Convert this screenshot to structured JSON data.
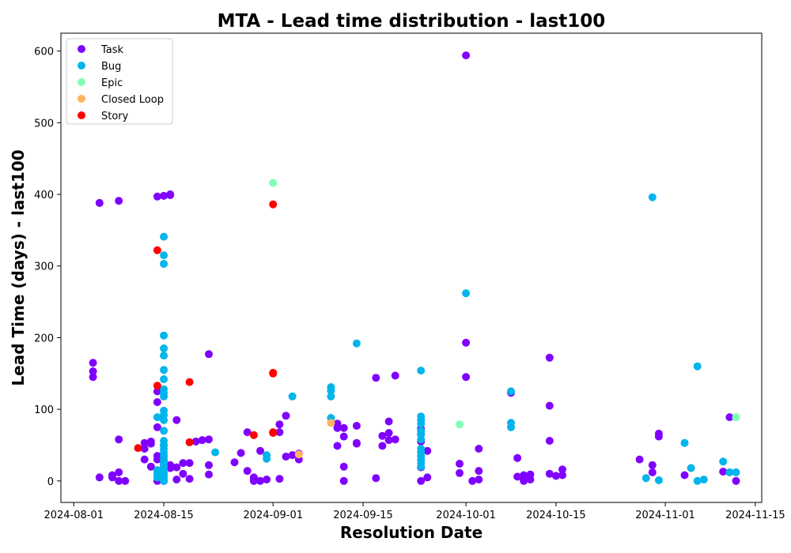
{
  "chart_data": {
    "type": "scatter",
    "title": "MTA - Lead time distribution - last100",
    "xlabel": "Resolution Date",
    "ylabel": "Lead Time (days) - last100",
    "xlim": [
      "2024-07-30",
      "2024-11-16"
    ],
    "ylim": [
      -30,
      625
    ],
    "x_ticks": [
      "2024-08-01",
      "2024-08-15",
      "2024-09-01",
      "2024-09-15",
      "2024-10-01",
      "2024-10-15",
      "2024-11-01",
      "2024-11-15"
    ],
    "y_ticks": [
      0,
      100,
      200,
      300,
      400,
      500,
      600
    ],
    "grid": false,
    "legend_position": "upper left",
    "series": [
      {
        "name": "Task",
        "color": "#8000ff",
        "points": [
          [
            "2024-08-04",
            165
          ],
          [
            "2024-08-04",
            153
          ],
          [
            "2024-08-04",
            145
          ],
          [
            "2024-08-05",
            388
          ],
          [
            "2024-08-05",
            5
          ],
          [
            "2024-08-07",
            5
          ],
          [
            "2024-08-07",
            8
          ],
          [
            "2024-08-08",
            0
          ],
          [
            "2024-08-08",
            12
          ],
          [
            "2024-08-08",
            58
          ],
          [
            "2024-08-08",
            391
          ],
          [
            "2024-08-09",
            0
          ],
          [
            "2024-08-12",
            53
          ],
          [
            "2024-08-12",
            30
          ],
          [
            "2024-08-12",
            45
          ],
          [
            "2024-08-13",
            20
          ],
          [
            "2024-08-13",
            55
          ],
          [
            "2024-08-13",
            52
          ],
          [
            "2024-08-14",
            75
          ],
          [
            "2024-08-14",
            35
          ],
          [
            "2024-08-14",
            30
          ],
          [
            "2024-08-14",
            0
          ],
          [
            "2024-08-14",
            15
          ],
          [
            "2024-08-14",
            397
          ],
          [
            "2024-08-14",
            110
          ],
          [
            "2024-08-14",
            125
          ],
          [
            "2024-08-15",
            398
          ],
          [
            "2024-08-15",
            35
          ],
          [
            "2024-08-15",
            50
          ],
          [
            "2024-08-15",
            22
          ],
          [
            "2024-08-15",
            5
          ],
          [
            "2024-08-15",
            0
          ],
          [
            "2024-08-15",
            10
          ],
          [
            "2024-08-15",
            28
          ],
          [
            "2024-08-16",
            399
          ],
          [
            "2024-08-16",
            400
          ],
          [
            "2024-08-16",
            22
          ],
          [
            "2024-08-16",
            18
          ],
          [
            "2024-08-17",
            2
          ],
          [
            "2024-08-17",
            85
          ],
          [
            "2024-08-17",
            19
          ],
          [
            "2024-08-18",
            10
          ],
          [
            "2024-08-18",
            25
          ],
          [
            "2024-08-19",
            25
          ],
          [
            "2024-08-19",
            3
          ],
          [
            "2024-08-20",
            55
          ],
          [
            "2024-08-21",
            57
          ],
          [
            "2024-08-22",
            58
          ],
          [
            "2024-08-22",
            177
          ],
          [
            "2024-08-22",
            22
          ],
          [
            "2024-08-22",
            9
          ],
          [
            "2024-08-26",
            26
          ],
          [
            "2024-08-27",
            39
          ],
          [
            "2024-08-28",
            14
          ],
          [
            "2024-08-28",
            68
          ],
          [
            "2024-08-29",
            5
          ],
          [
            "2024-08-29",
            0
          ],
          [
            "2024-08-29",
            2
          ],
          [
            "2024-08-30",
            0
          ],
          [
            "2024-08-30",
            42
          ],
          [
            "2024-08-31",
            2
          ],
          [
            "2024-09-02",
            68
          ],
          [
            "2024-09-02",
            3
          ],
          [
            "2024-09-02",
            79
          ],
          [
            "2024-09-03",
            34
          ],
          [
            "2024-09-03",
            91
          ],
          [
            "2024-09-04",
            36
          ],
          [
            "2024-09-05",
            38
          ],
          [
            "2024-09-05",
            30
          ],
          [
            "2024-09-11",
            80
          ],
          [
            "2024-09-11",
            49
          ],
          [
            "2024-09-11",
            74
          ],
          [
            "2024-09-12",
            62
          ],
          [
            "2024-09-12",
            74
          ],
          [
            "2024-09-12",
            0
          ],
          [
            "2024-09-12",
            20
          ],
          [
            "2024-09-14",
            77
          ],
          [
            "2024-09-14",
            52
          ],
          [
            "2024-09-14",
            53
          ],
          [
            "2024-09-17",
            144
          ],
          [
            "2024-09-17",
            4
          ],
          [
            "2024-09-18",
            49
          ],
          [
            "2024-09-18",
            63
          ],
          [
            "2024-09-19",
            67
          ],
          [
            "2024-09-19",
            83
          ],
          [
            "2024-09-19",
            57
          ],
          [
            "2024-09-20",
            147
          ],
          [
            "2024-09-20",
            58
          ],
          [
            "2024-09-24",
            65
          ],
          [
            "2024-09-24",
            73
          ],
          [
            "2024-09-24",
            55
          ],
          [
            "2024-09-24",
            19
          ],
          [
            "2024-09-24",
            0
          ],
          [
            "2024-09-25",
            42
          ],
          [
            "2024-09-25",
            5
          ],
          [
            "2024-09-30",
            11
          ],
          [
            "2024-09-30",
            24
          ],
          [
            "2024-10-01",
            594
          ],
          [
            "2024-10-01",
            145
          ],
          [
            "2024-10-01",
            193
          ],
          [
            "2024-10-02",
            0
          ],
          [
            "2024-10-03",
            45
          ],
          [
            "2024-10-03",
            2
          ],
          [
            "2024-10-03",
            14
          ],
          [
            "2024-10-08",
            123
          ],
          [
            "2024-10-09",
            32
          ],
          [
            "2024-10-09",
            6
          ],
          [
            "2024-10-10",
            8
          ],
          [
            "2024-10-10",
            1
          ],
          [
            "2024-10-10",
            0
          ],
          [
            "2024-10-11",
            2
          ],
          [
            "2024-10-11",
            9
          ],
          [
            "2024-10-14",
            172
          ],
          [
            "2024-10-14",
            105
          ],
          [
            "2024-10-14",
            56
          ],
          [
            "2024-10-14",
            10
          ],
          [
            "2024-10-15",
            7
          ],
          [
            "2024-10-16",
            16
          ],
          [
            "2024-10-16",
            8
          ],
          [
            "2024-10-28",
            30
          ],
          [
            "2024-10-30",
            12
          ],
          [
            "2024-10-30",
            22
          ],
          [
            "2024-10-31",
            62
          ],
          [
            "2024-10-31",
            66
          ],
          [
            "2024-11-04",
            8
          ],
          [
            "2024-11-10",
            13
          ],
          [
            "2024-11-11",
            89
          ],
          [
            "2024-11-12",
            0
          ]
        ]
      },
      {
        "name": "Bug",
        "color": "#00b5eb",
        "points": [
          [
            "2024-08-14",
            89
          ],
          [
            "2024-08-14",
            15
          ],
          [
            "2024-08-14",
            5
          ],
          [
            "2024-08-14",
            10
          ],
          [
            "2024-08-15",
            341
          ],
          [
            "2024-08-15",
            315
          ],
          [
            "2024-08-15",
            303
          ],
          [
            "2024-08-15",
            203
          ],
          [
            "2024-08-15",
            185
          ],
          [
            "2024-08-15",
            175
          ],
          [
            "2024-08-15",
            155
          ],
          [
            "2024-08-15",
            142
          ],
          [
            "2024-08-15",
            128
          ],
          [
            "2024-08-15",
            123
          ],
          [
            "2024-08-15",
            118
          ],
          [
            "2024-08-15",
            98
          ],
          [
            "2024-08-15",
            92
          ],
          [
            "2024-08-15",
            85
          ],
          [
            "2024-08-15",
            70
          ],
          [
            "2024-08-15",
            56
          ],
          [
            "2024-08-15",
            50
          ],
          [
            "2024-08-15",
            45
          ],
          [
            "2024-08-15",
            40
          ],
          [
            "2024-08-15",
            35
          ],
          [
            "2024-08-15",
            30
          ],
          [
            "2024-08-15",
            25
          ],
          [
            "2024-08-15",
            20
          ],
          [
            "2024-08-15",
            15
          ],
          [
            "2024-08-15",
            10
          ],
          [
            "2024-08-15",
            5
          ],
          [
            "2024-08-15",
            0
          ],
          [
            "2024-08-23",
            40
          ],
          [
            "2024-08-31",
            36
          ],
          [
            "2024-08-31",
            31
          ],
          [
            "2024-09-04",
            118
          ],
          [
            "2024-09-10",
            131
          ],
          [
            "2024-09-10",
            126
          ],
          [
            "2024-09-10",
            118
          ],
          [
            "2024-09-10",
            88
          ],
          [
            "2024-09-14",
            192
          ],
          [
            "2024-09-24",
            154
          ],
          [
            "2024-09-24",
            90
          ],
          [
            "2024-09-24",
            85
          ],
          [
            "2024-09-24",
            80
          ],
          [
            "2024-09-24",
            70
          ],
          [
            "2024-09-24",
            65
          ],
          [
            "2024-09-24",
            58
          ],
          [
            "2024-09-24",
            45
          ],
          [
            "2024-09-24",
            40
          ],
          [
            "2024-09-24",
            35
          ],
          [
            "2024-09-24",
            30
          ],
          [
            "2024-09-24",
            25
          ],
          [
            "2024-09-24",
            20
          ],
          [
            "2024-10-01",
            262
          ],
          [
            "2024-10-08",
            125
          ],
          [
            "2024-10-08",
            81
          ],
          [
            "2024-10-08",
            75
          ],
          [
            "2024-10-29",
            4
          ],
          [
            "2024-10-30",
            396
          ],
          [
            "2024-10-31",
            1
          ],
          [
            "2024-11-04",
            53
          ],
          [
            "2024-11-05",
            18
          ],
          [
            "2024-11-06",
            160
          ],
          [
            "2024-11-06",
            0
          ],
          [
            "2024-11-07",
            2
          ],
          [
            "2024-11-10",
            27
          ],
          [
            "2024-11-11",
            12
          ],
          [
            "2024-11-12",
            12
          ],
          [
            "2024-11-12",
            89
          ]
        ]
      },
      {
        "name": "Epic",
        "color": "#80ffb4",
        "points": [
          [
            "2024-09-01",
            416
          ],
          [
            "2024-09-30",
            79
          ],
          [
            "2024-11-12",
            89
          ]
        ]
      },
      {
        "name": "Closed Loop",
        "color": "#ffb360",
        "points": [
          [
            "2024-09-05",
            37
          ],
          [
            "2024-09-10",
            81
          ]
        ]
      },
      {
        "name": "Story",
        "color": "#ff0000",
        "points": [
          [
            "2024-08-11",
            46
          ],
          [
            "2024-08-14",
            322
          ],
          [
            "2024-08-14",
            133
          ],
          [
            "2024-08-19",
            138
          ],
          [
            "2024-08-19",
            54
          ],
          [
            "2024-08-29",
            64
          ],
          [
            "2024-09-01",
            386
          ],
          [
            "2024-09-01",
            151
          ],
          [
            "2024-09-01",
            150
          ],
          [
            "2024-09-01",
            68
          ],
          [
            "2024-09-01",
            67
          ]
        ]
      }
    ]
  }
}
